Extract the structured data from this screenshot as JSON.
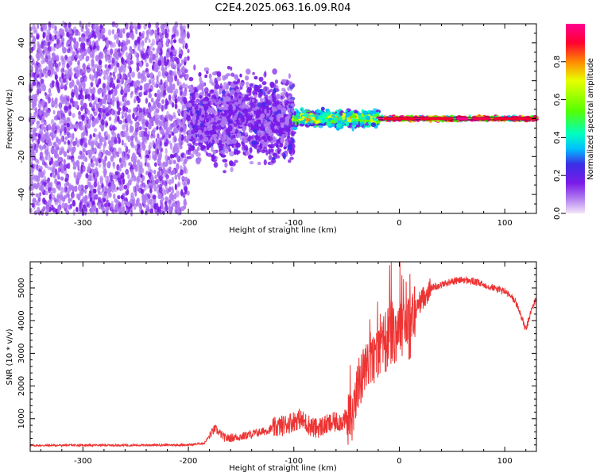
{
  "figure_title": "C2E4.2025.063.16.09.R04",
  "chart_data": [
    {
      "type": "heatmap",
      "title": "C2E4.2025.063.16.09.R04",
      "xlabel": "Height of straight line (km)",
      "ylabel": "Frequency (Hz)",
      "xlim": [
        -350,
        130
      ],
      "ylim": [
        -50,
        50
      ],
      "xticks": [
        -300,
        -200,
        -100,
        0,
        100
      ],
      "yticks": [
        -40,
        -20,
        0,
        20,
        40
      ],
      "colorbar": {
        "label": "Normalized spectral amplitude",
        "range": [
          0.0,
          1.0
        ],
        "ticks": [
          "0.0",
          "0.2",
          "0.4",
          "0.6",
          "0.8"
        ],
        "colormap": [
          "#f4e6f8",
          "#b07af0",
          "#7a1be8",
          "#3a2fe6",
          "#00bfff",
          "#00ffc0",
          "#55ff00",
          "#e8ff00",
          "#ff8a00",
          "#ff0030",
          "#ff0090"
        ]
      },
      "regions": [
        {
          "x_from": -350,
          "x_to": -200,
          "freq_spread_hz": 50,
          "amplitude": 0.15,
          "description": "noise"
        },
        {
          "x_from": -200,
          "x_to": -100,
          "freq_spread_hz": 30,
          "amplitude": 0.2
        },
        {
          "x_from": -100,
          "x_to": -20,
          "freq_spread_hz": 6,
          "amplitude": 0.45
        },
        {
          "x_from": -20,
          "x_to": 130,
          "freq_spread_hz": 1.5,
          "amplitude": 0.95
        }
      ],
      "line_peak_freq_hz": 0
    },
    {
      "type": "line",
      "xlabel": "Height of straight line (km)",
      "ylabel": "SNR (10 * v/v)",
      "xlim": [
        -350,
        130
      ],
      "ylim": [
        0,
        5800
      ],
      "xticks": [
        -300,
        -200,
        -100,
        0,
        100
      ],
      "yticks": [
        1000,
        2000,
        3000,
        4000,
        5000
      ],
      "color": "#ee3333",
      "series": [
        {
          "name": "SNR",
          "x": [
            -350,
            -300,
            -250,
            -200,
            -185,
            -175,
            -165,
            -150,
            -130,
            -110,
            -95,
            -80,
            -60,
            -45,
            -40,
            -30,
            -20,
            -10,
            0,
            5,
            10,
            15,
            20,
            30,
            40,
            50,
            60,
            70,
            80,
            90,
            100,
            110,
            115,
            120,
            125,
            130
          ],
          "y": [
            180,
            190,
            190,
            200,
            250,
            700,
            400,
            450,
            600,
            800,
            1000,
            700,
            900,
            1000,
            2000,
            2600,
            3000,
            3500,
            3800,
            4000,
            3700,
            4300,
            4600,
            5000,
            5100,
            5200,
            5250,
            5200,
            5100,
            5000,
            4900,
            4600,
            4200,
            3700,
            4300,
            4700
          ]
        }
      ],
      "noise_amplitude_note": "high-frequency jitter between -50 and 15 km"
    }
  ]
}
